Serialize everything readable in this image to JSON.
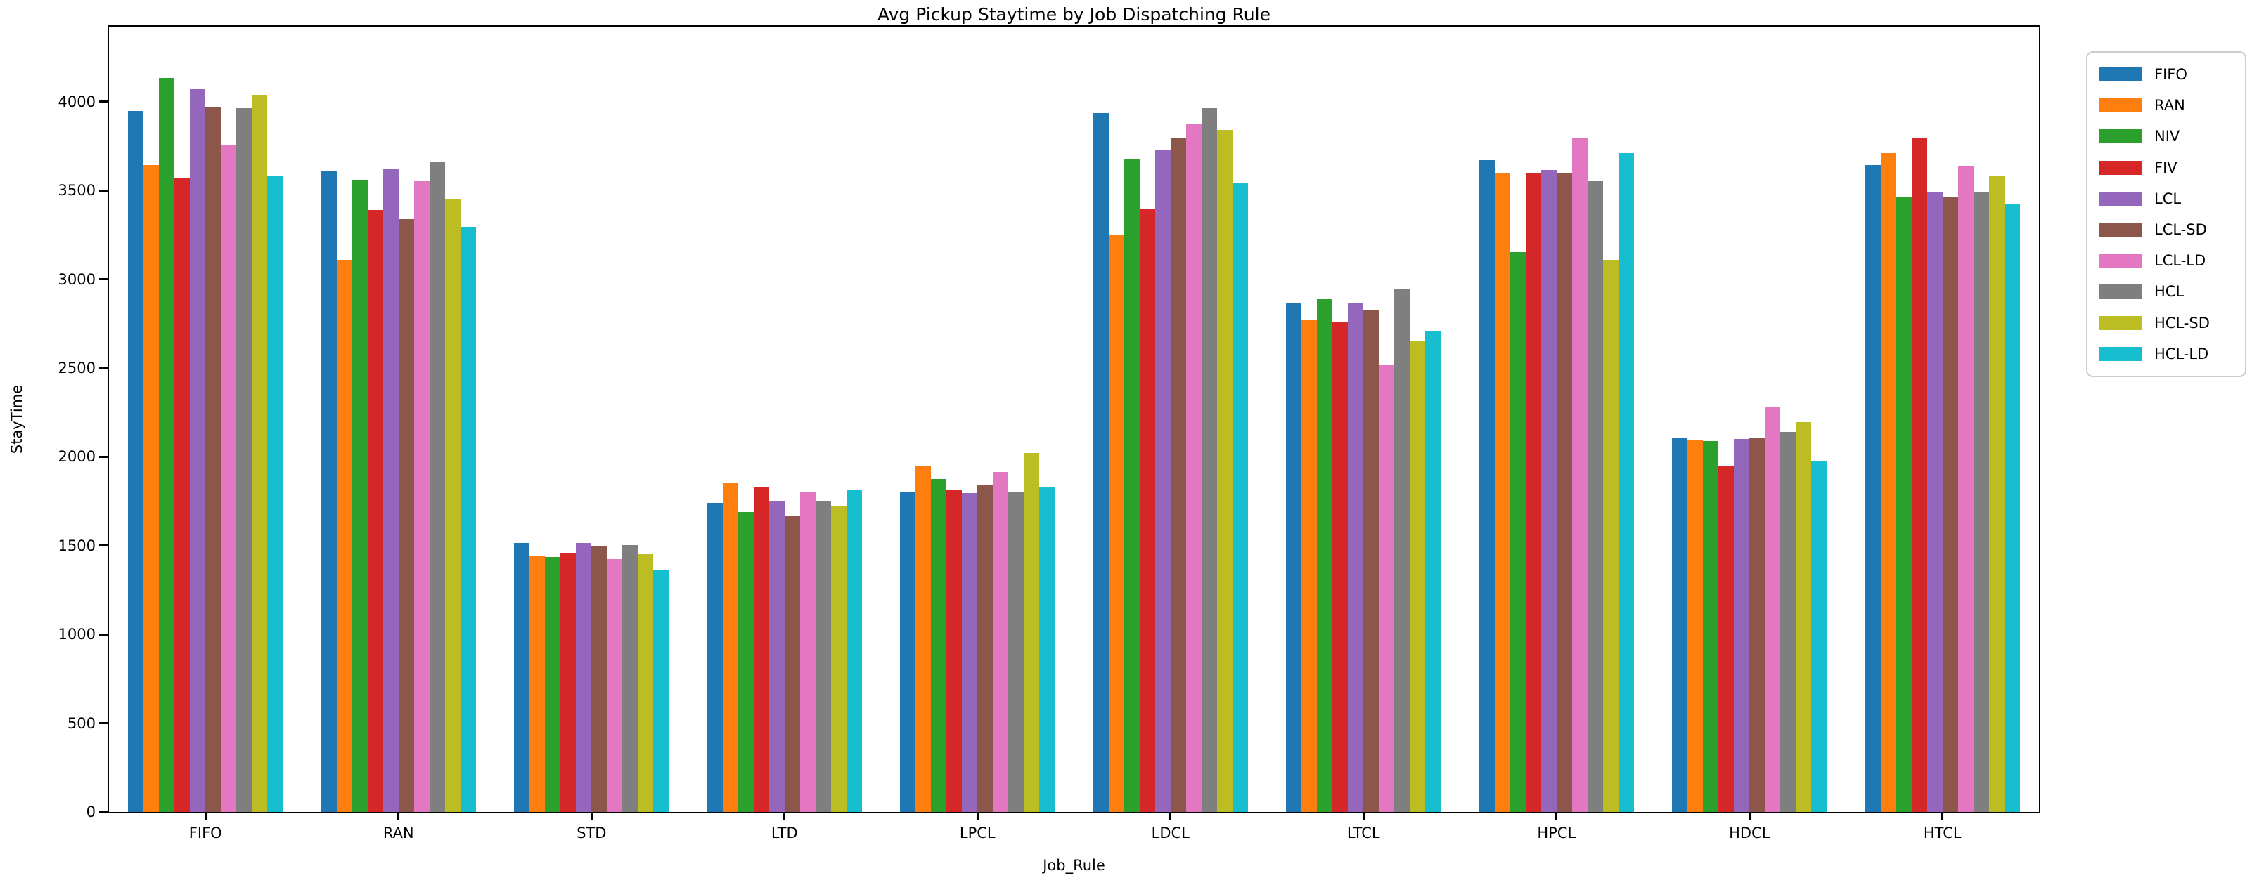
{
  "chart_data": {
    "type": "bar",
    "title": "Avg Pickup Staytime by Job Dispatching Rule",
    "xlabel": "Job_Rule",
    "ylabel": "StayTime",
    "categories": [
      "FIFO",
      "RAN",
      "STD",
      "LTD",
      "LPCL",
      "LDCL",
      "LTCL",
      "HPCL",
      "HDCL",
      "HTCL"
    ],
    "series": [
      {
        "name": "FIFO",
        "color": "#1f77b4",
        "values": [
          3950,
          3610,
          1515,
          1740,
          1800,
          3935,
          2865,
          3670,
          2110,
          3645
        ]
      },
      {
        "name": "RAN",
        "color": "#ff7f0e",
        "values": [
          3645,
          3110,
          1440,
          1850,
          1950,
          3250,
          2775,
          3600,
          2095,
          3710
        ]
      },
      {
        "name": "NIV",
        "color": "#2ca02c",
        "values": [
          4135,
          3560,
          1435,
          1690,
          1875,
          3675,
          2890,
          3155,
          2090,
          3460
        ]
      },
      {
        "name": "FIV",
        "color": "#d62728",
        "values": [
          3570,
          3390,
          1455,
          1830,
          1810,
          3400,
          2760,
          3600,
          1950,
          3795
        ]
      },
      {
        "name": "LCL",
        "color": "#9467bd",
        "values": [
          4070,
          3620,
          1515,
          1750,
          1795,
          3730,
          2865,
          3615,
          2100,
          3490
        ]
      },
      {
        "name": "LCL-SD",
        "color": "#8c564b",
        "values": [
          3970,
          3340,
          1495,
          1670,
          1845,
          3795,
          2825,
          3600,
          2110,
          3465
        ]
      },
      {
        "name": "LCL-LD",
        "color": "#e377c2",
        "values": [
          3760,
          3555,
          1425,
          1800,
          1915,
          3875,
          2520,
          3795,
          2280,
          3635
        ]
      },
      {
        "name": "HCL",
        "color": "#7f7f7f",
        "values": [
          3965,
          3665,
          1505,
          1750,
          1800,
          3965,
          2945,
          3555,
          2140,
          3495
        ]
      },
      {
        "name": "HCL-SD",
        "color": "#bcbd22",
        "values": [
          4040,
          3450,
          1450,
          1720,
          2020,
          3840,
          2655,
          3110,
          2195,
          3585
        ]
      },
      {
        "name": "HCL-LD",
        "color": "#17becf",
        "values": [
          3585,
          3295,
          1360,
          1815,
          1830,
          3540,
          2710,
          3710,
          1980,
          3425
        ]
      }
    ],
    "yticks": [
      0,
      500,
      1000,
      1500,
      2000,
      2500,
      3000,
      3500,
      4000
    ],
    "ylim": [
      0,
      4423
    ],
    "grid": false,
    "legend_position": "outside-upper-right",
    "bar_group_fill": 0.8
  }
}
